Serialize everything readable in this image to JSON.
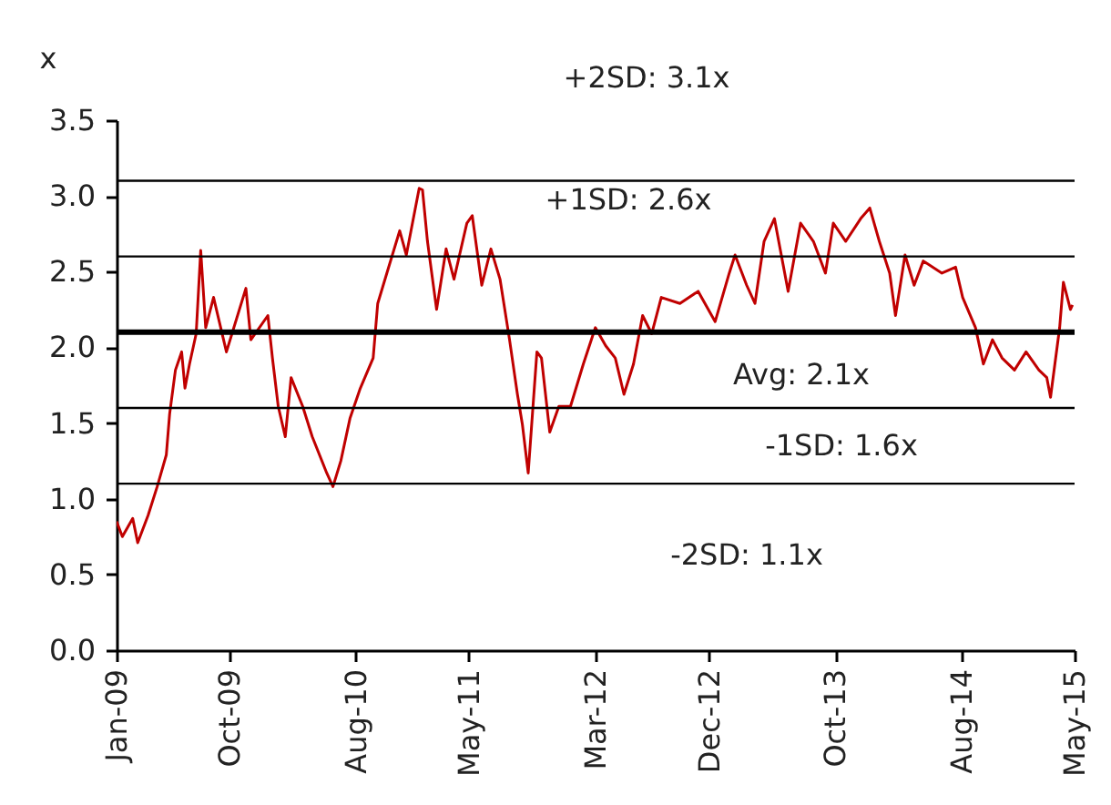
{
  "chart_data": {
    "type": "line",
    "ylabel": "x",
    "xlim": [
      "2009-01-01",
      "2015-05-01"
    ],
    "xticks": [
      {
        "value": "2009-01-01",
        "label": "Jan-09"
      },
      {
        "value": "2009-10-01",
        "label": "Oct-09"
      },
      {
        "value": "2010-08-01",
        "label": "Aug-10"
      },
      {
        "value": "2011-05-01",
        "label": "May-11"
      },
      {
        "value": "2012-03-01",
        "label": "Mar-12"
      },
      {
        "value": "2012-12-01",
        "label": "Dec-12"
      },
      {
        "value": "2013-10-01",
        "label": "Oct-13"
      },
      {
        "value": "2014-08-01",
        "label": "Aug-14"
      },
      {
        "value": "2015-05-01",
        "label": "May-15"
      }
    ],
    "ylim": [
      0,
      3.5
    ],
    "yticks": [
      {
        "value": 0,
        "label": "0.0"
      },
      {
        "value": 0.5,
        "label": "0.5"
      },
      {
        "value": 1,
        "label": "1.0"
      },
      {
        "value": 1.5,
        "label": "1.5"
      },
      {
        "value": 2,
        "label": "2.0"
      },
      {
        "value": 2.5,
        "label": "2.5"
      },
      {
        "value": 3,
        "label": "3.0"
      },
      {
        "value": 3.5,
        "label": "3.5"
      }
    ],
    "x": [
      "2009-01-01",
      "2009-01-15",
      "2009-02-09",
      "2009-02-21",
      "2009-03-18",
      "2009-04-09",
      "2009-05-01",
      "2009-05-09",
      "2009-05-23",
      "2009-06-07",
      "2009-06-15",
      "2009-06-26",
      "2009-07-12",
      "2009-07-23",
      "2009-08-04",
      "2009-08-23",
      "2009-09-23",
      "2009-11-09",
      "2009-11-21",
      "2010-01-01",
      "2010-01-12",
      "2010-01-26",
      "2010-02-12",
      "2010-02-26",
      "2010-03-26",
      "2010-04-18",
      "2010-05-23",
      "2010-06-07",
      "2010-06-26",
      "2010-07-18",
      "2010-08-12",
      "2010-09-12",
      "2010-09-23",
      "2010-10-15",
      "2010-11-15",
      "2010-12-01",
      "2011-01-01",
      "2011-01-09",
      "2011-01-21",
      "2011-02-12",
      "2011-03-07",
      "2011-03-26",
      "2011-04-26",
      "2011-05-09",
      "2011-06-01",
      "2011-06-23",
      "2011-07-15",
      "2011-08-07",
      "2011-08-26",
      "2011-09-07",
      "2011-09-21",
      "2011-10-12",
      "2011-10-23",
      "2011-11-12",
      "2011-12-04",
      "2012-01-01",
      "2012-02-01",
      "2012-03-01",
      "2012-03-26",
      "2012-04-18",
      "2012-05-09",
      "2012-06-01",
      "2012-06-23",
      "2012-07-15",
      "2012-08-07",
      "2012-09-21",
      "2012-11-04",
      "2012-12-15",
      "2013-01-18",
      "2013-02-01",
      "2013-03-01",
      "2013-03-21",
      "2013-04-12",
      "2013-05-07",
      "2013-06-09",
      "2013-07-09",
      "2013-08-09",
      "2013-09-07",
      "2013-09-26",
      "2013-10-26",
      "2013-12-01",
      "2013-12-23",
      "2014-01-15",
      "2014-02-09",
      "2014-02-23",
      "2014-03-18",
      "2014-04-09",
      "2014-05-01",
      "2014-06-15",
      "2014-07-18",
      "2014-08-04",
      "2014-09-04",
      "2014-09-23",
      "2014-10-15",
      "2014-11-07",
      "2014-12-07",
      "2015-01-04",
      "2015-02-04",
      "2015-02-23",
      "2015-03-04",
      "2015-03-26",
      "2015-04-04",
      "2015-04-21",
      "2015-04-26"
    ],
    "series": [
      {
        "color": "#c00000",
        "values": [
          0.85,
          0.75,
          0.87,
          0.71,
          0.89,
          1.08,
          1.29,
          1.56,
          1.85,
          1.97,
          1.73,
          1.89,
          2.09,
          2.64,
          2.13,
          2.33,
          1.97,
          2.39,
          2.05,
          2.21,
          1.93,
          1.61,
          1.41,
          1.8,
          1.61,
          1.41,
          1.17,
          1.08,
          1.25,
          1.53,
          1.73,
          1.93,
          2.29,
          2.49,
          2.77,
          2.61,
          3.05,
          3.04,
          2.7,
          2.25,
          2.65,
          2.45,
          2.82,
          2.87,
          2.41,
          2.65,
          2.45,
          2.05,
          1.69,
          1.49,
          1.17,
          1.97,
          1.93,
          1.44,
          1.61,
          1.61,
          1.89,
          2.13,
          2.01,
          1.93,
          1.69,
          1.89,
          2.21,
          2.09,
          2.33,
          2.29,
          2.37,
          2.17,
          2.49,
          2.61,
          2.41,
          2.29,
          2.7,
          2.85,
          2.37,
          2.82,
          2.7,
          2.49,
          2.82,
          2.7,
          2.85,
          2.92,
          2.7,
          2.49,
          2.21,
          2.61,
          2.41,
          2.57,
          2.49,
          2.53,
          2.33,
          2.13,
          1.89,
          2.05,
          1.93,
          1.85,
          1.97,
          1.85,
          1.8,
          1.67,
          2.13,
          2.43,
          2.25,
          2.28
        ]
      }
    ],
    "ref_lines": [
      {
        "axis": "y",
        "value": 3.1,
        "label": "+2SD: 3.1x",
        "color": "#000000"
      },
      {
        "axis": "y",
        "value": 2.6,
        "label": "+1SD: 2.6x",
        "color": "#000000"
      },
      {
        "axis": "y",
        "value": 2.1,
        "label": "Avg: 2.1x",
        "color": "#000000"
      },
      {
        "axis": "y",
        "value": 1.6,
        "label": "-1SD: 1.6x",
        "color": "#000000"
      },
      {
        "axis": "y",
        "value": 1.1,
        "label": "-2SD: 1.1x",
        "color": "#000000"
      }
    ],
    "grid": false,
    "legend": false,
    "marker": "none",
    "line_style": "solid"
  }
}
